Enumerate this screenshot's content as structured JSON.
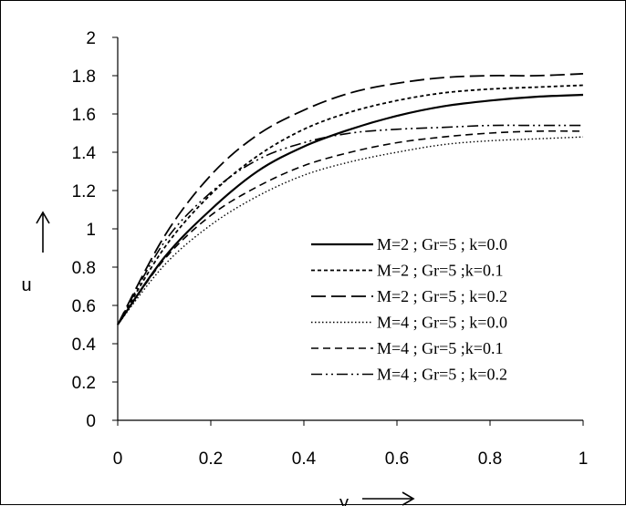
{
  "chart_data": {
    "type": "line",
    "title": "",
    "xlabel": "y",
    "ylabel": "u",
    "xlim": [
      0,
      1
    ],
    "ylim": [
      0,
      2
    ],
    "x_ticks": [
      "0",
      "0.2",
      "0.4",
      "0.6",
      "0.8",
      "1"
    ],
    "y_ticks": [
      "0",
      "0.2",
      "0.4",
      "0.6",
      "0.8",
      "1",
      "1.2",
      "1.4",
      "1.6",
      "1.8",
      "2"
    ],
    "grid": false,
    "legend_position": "center-right",
    "x": [
      0,
      0.1,
      0.2,
      0.3,
      0.4,
      0.5,
      0.6,
      0.7,
      0.8,
      0.9,
      1.0
    ],
    "series": [
      {
        "name": "M=2 ; Gr=5 ; k=0.0",
        "style": "solid",
        "values": [
          0.5,
          0.85,
          1.1,
          1.3,
          1.43,
          1.52,
          1.59,
          1.64,
          1.67,
          1.69,
          1.7
        ]
      },
      {
        "name": "M=2 ; Gr=5 ;k=0.1",
        "style": "short-dash",
        "values": [
          0.5,
          0.9,
          1.18,
          1.38,
          1.52,
          1.61,
          1.67,
          1.71,
          1.73,
          1.74,
          1.75
        ]
      },
      {
        "name": "M=2 ; Gr=5 ; k=0.2",
        "style": "long-dash",
        "values": [
          0.5,
          0.96,
          1.28,
          1.49,
          1.62,
          1.71,
          1.76,
          1.79,
          1.8,
          1.8,
          1.81
        ]
      },
      {
        "name": "M=4 ; Gr=5 ; k=0.0",
        "style": "dotted",
        "values": [
          0.5,
          0.81,
          1.02,
          1.17,
          1.28,
          1.35,
          1.4,
          1.44,
          1.46,
          1.47,
          1.48
        ]
      },
      {
        "name": "M=4 ; Gr=5 ;k=0.1",
        "style": "dash",
        "values": [
          0.5,
          0.84,
          1.07,
          1.22,
          1.33,
          1.4,
          1.45,
          1.48,
          1.5,
          1.51,
          1.51
        ]
      },
      {
        "name": "M=4 ; Gr=5 ; k=0.2",
        "style": "dash-dot-dot",
        "values": [
          0.5,
          0.93,
          1.19,
          1.36,
          1.45,
          1.5,
          1.52,
          1.53,
          1.54,
          1.54,
          1.54
        ]
      }
    ]
  }
}
